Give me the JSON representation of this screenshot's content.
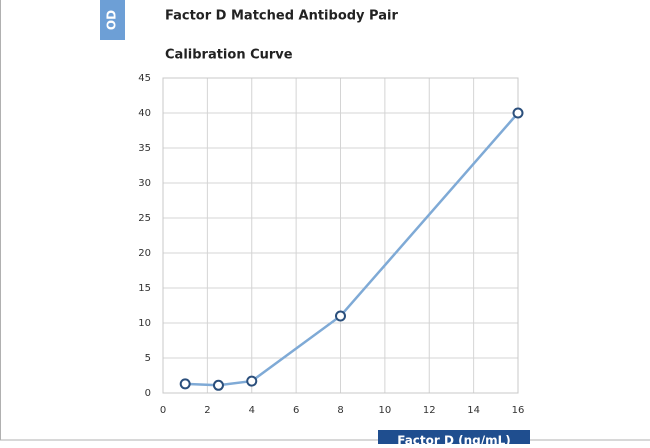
{
  "chart_data": {
    "type": "line",
    "title": "Factor D Matched Antibody Pair",
    "subtitle": "Calibration Curve",
    "x_label": "Factor D (ng/mL)",
    "y_label": "OD",
    "x": [
      1,
      2.5,
      4,
      8,
      16
    ],
    "series": [
      {
        "color": "#7faad6",
        "values": [
          1.3,
          1.1,
          1.7,
          11,
          40
        ]
      }
    ],
    "xlim": [
      0,
      16
    ],
    "xticks": [
      0,
      2,
      4,
      6,
      8,
      10,
      12,
      14,
      16
    ],
    "ylim": [
      0,
      45
    ],
    "yticks": [
      0,
      5,
      10,
      15,
      20,
      25,
      30,
      35,
      40,
      45
    ],
    "grid": true
  }
}
